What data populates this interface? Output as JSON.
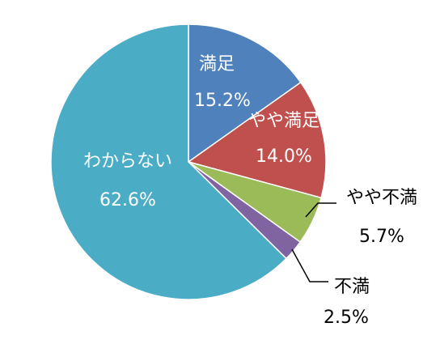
{
  "chart_data": {
    "type": "pie",
    "title": "",
    "slices": [
      {
        "label": "満足",
        "value": 15.2,
        "display": "15.2%",
        "color": "#4f81bd"
      },
      {
        "label": "やや満足",
        "value": 14.0,
        "display": "14.0%",
        "color": "#c0504d"
      },
      {
        "label": "やや不満",
        "value": 5.7,
        "display": "5.7%",
        "color": "#9bbb59"
      },
      {
        "label": "不満",
        "value": 2.5,
        "display": "2.5%",
        "color": "#8064a2"
      },
      {
        "label": "わからない",
        "value": 62.6,
        "display": "62.6%",
        "color": "#4bacc6"
      }
    ],
    "start_angle": "12 o'clock",
    "direction": "clockwise",
    "legend": "none"
  }
}
